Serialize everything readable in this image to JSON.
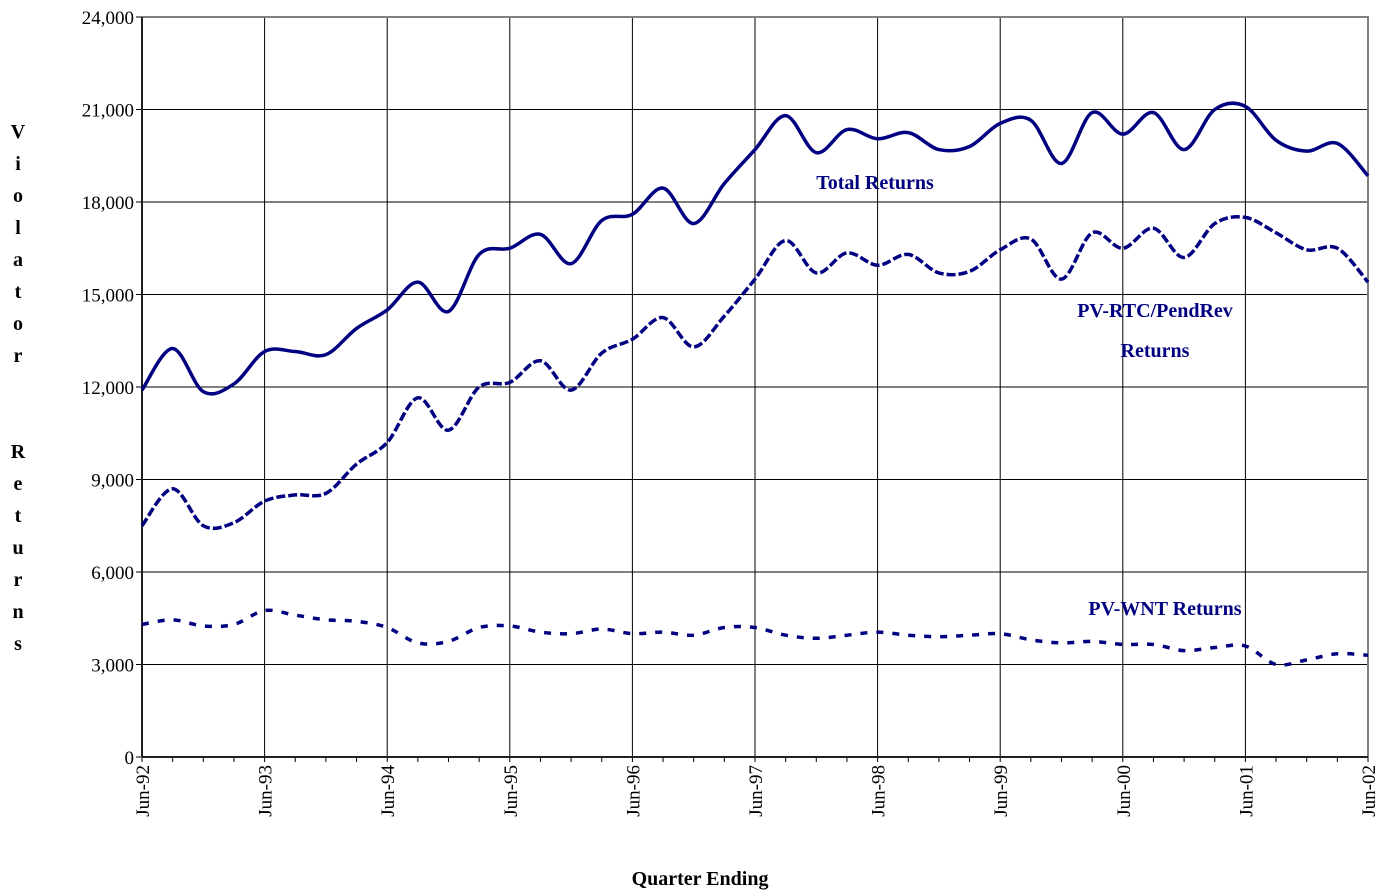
{
  "chart_data": {
    "type": "line",
    "x_label": "Quarter Ending",
    "y_label": "Violator Returns",
    "categories": [
      "Jun-92",
      null,
      null,
      null,
      "Jun-93",
      null,
      null,
      null,
      "Jun-94",
      null,
      null,
      null,
      "Jun-95",
      null,
      null,
      null,
      "Jun-96",
      null,
      null,
      null,
      "Jun-97",
      null,
      null,
      null,
      "Jun-98",
      null,
      null,
      null,
      "Jun-99",
      null,
      null,
      null,
      "Jun-00",
      null,
      null,
      null,
      "Jun-01",
      null,
      null,
      null,
      "Jun-02"
    ],
    "series": [
      {
        "name": "Total Returns",
        "color": "#000080",
        "dash": "solid",
        "values": [
          11900,
          13250,
          11850,
          12100,
          13150,
          13150,
          13050,
          13900,
          14500,
          15400,
          14450,
          16300,
          16500,
          16950,
          16000,
          17400,
          17600,
          18450,
          17300,
          18600,
          19700,
          20800,
          19600,
          20350,
          20050,
          20250,
          19700,
          19800,
          20550,
          20650,
          19250,
          20900,
          20200,
          20900,
          19700,
          21000,
          21100,
          20000,
          19650,
          19900,
          18850
        ]
      },
      {
        "name": "PV-RTC/PendRev Returns",
        "color": "#000080",
        "dash": "dashed",
        "values": [
          7500,
          8700,
          7500,
          7600,
          8300,
          8500,
          8550,
          9500,
          10200,
          11650,
          10600,
          12000,
          12150,
          12850,
          11900,
          13100,
          13550,
          14250,
          13300,
          14300,
          15500,
          16750,
          15700,
          16350,
          15950,
          16300,
          15700,
          15750,
          16450,
          16800,
          15500,
          17000,
          16500,
          17150,
          16200,
          17300,
          17500,
          17000,
          16450,
          16500,
          15400
        ]
      },
      {
        "name": "PV-WNT Returns",
        "color": "#000080",
        "dash": "dotted",
        "values": [
          4300,
          4450,
          4250,
          4300,
          4750,
          4600,
          4450,
          4400,
          4200,
          3700,
          3750,
          4200,
          4250,
          4050,
          4000,
          4150,
          4000,
          4050,
          3950,
          4200,
          4200,
          3950,
          3850,
          3950,
          4050,
          3950,
          3900,
          3950,
          4000,
          3800,
          3700,
          3750,
          3650,
          3650,
          3450,
          3550,
          3600,
          3000,
          3150,
          3350,
          3300
        ]
      }
    ],
    "ylim": [
      0,
      24000
    ],
    "yticks": [
      0,
      {
        "value": 3000,
        "label": "3,000"
      },
      {
        "value": 6000,
        "label": "6,000"
      },
      {
        "value": 9000,
        "label": "9,000"
      },
      {
        "value": 12000,
        "label": "12,000"
      },
      {
        "value": 15000,
        "label": "15,000"
      },
      {
        "value": 18000,
        "label": "18,000"
      },
      {
        "value": 21000,
        "label": "21,000"
      },
      {
        "value": 24000,
        "label": "24,000"
      }
    ],
    "grid": true
  }
}
